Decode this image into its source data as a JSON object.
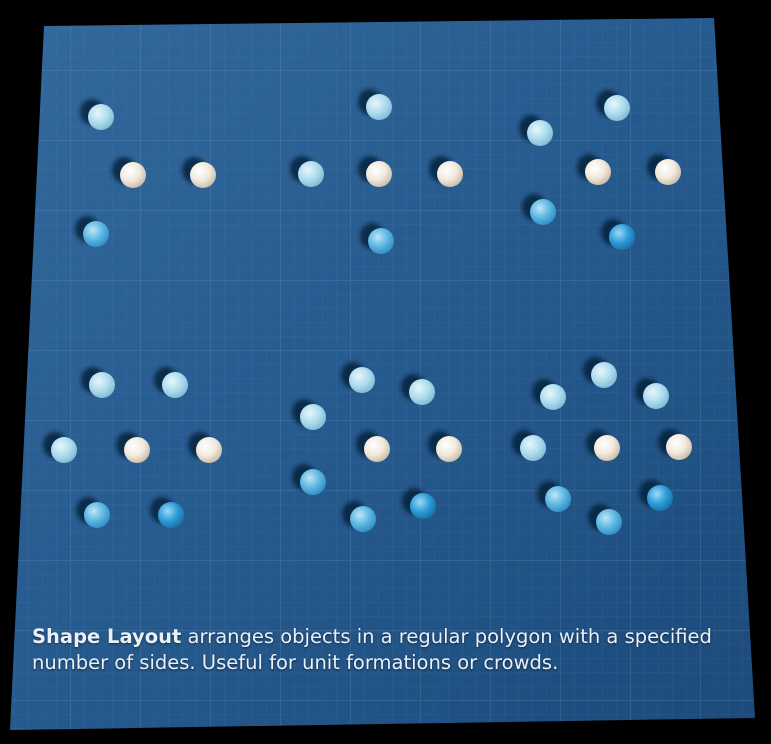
{
  "caption": {
    "title": "Shape Layout",
    "text": " arranges objects in a regular polygon with a specified number of sides. Useful for unit formations or crowds."
  },
  "colors": {
    "board_light": "#3f7ab0",
    "board_dark": "#1f4d80",
    "grid": "#6aa0d0",
    "sphere_white": "#f1ebe1",
    "sphere_pale_blue": "#b5e0ef",
    "sphere_blue": "#4fb1df",
    "sphere_deep_blue": "#2a9ad6"
  },
  "formations": [
    {
      "name": "formation-triangle",
      "sides": 3
    },
    {
      "name": "formation-square",
      "sides": 4
    },
    {
      "name": "formation-pentagon",
      "sides": 5
    },
    {
      "name": "formation-hexagon",
      "sides": 6
    },
    {
      "name": "formation-heptagon",
      "sides": 7
    },
    {
      "name": "formation-octagon",
      "sides": 8
    }
  ]
}
